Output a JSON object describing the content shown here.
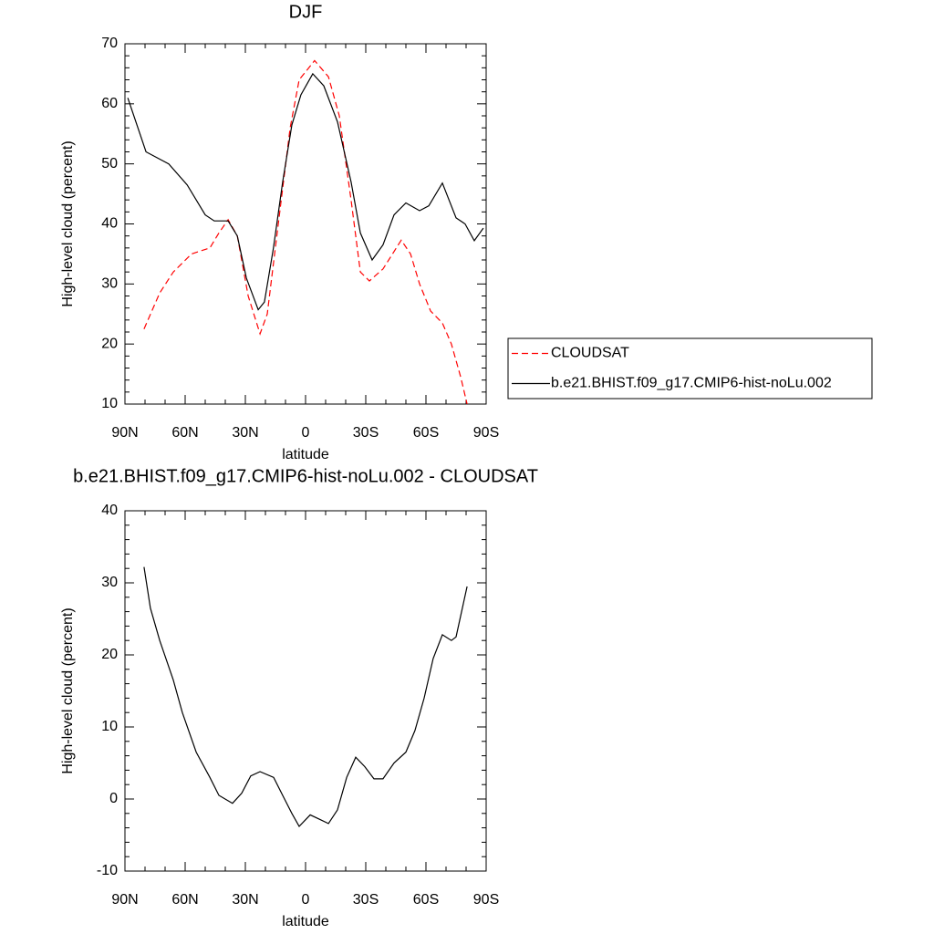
{
  "chart_data": [
    {
      "type": "line",
      "title": "DJF",
      "xlabel": "latitude",
      "ylabel": "High-level cloud (percent)",
      "xlim": [
        90,
        -90
      ],
      "xticks": [
        {
          "value": 90,
          "label": "90N"
        },
        {
          "value": 60,
          "label": "60N"
        },
        {
          "value": 30,
          "label": "30N"
        },
        0,
        {
          "value": -30,
          "label": "30S"
        },
        {
          "value": -60,
          "label": "60S"
        },
        {
          "value": -90,
          "label": "90S"
        }
      ],
      "ylim": [
        10,
        70
      ],
      "yticks": [
        10,
        20,
        30,
        40,
        50,
        60,
        70
      ],
      "legend": "right",
      "series": [
        {
          "name": "CLOUDSAT",
          "color": "#ff0000",
          "style": "dashed",
          "x": [
            80.5,
            72.7,
            65.9,
            56.8,
            47.7,
            43.2,
            38.6,
            34,
            28.6,
            22.7,
            19.1,
            13.6,
            7.7,
            3.2,
            -4.5,
            -11.4,
            -16.8,
            -22.7,
            -27.3,
            -31.8,
            -38.6,
            -47.7,
            -52.3,
            -56.8,
            -62.3,
            -68.2,
            -72.7,
            -77.3,
            -80.5
          ],
          "values": [
            22.5,
            28.5,
            32,
            35,
            36,
            38.5,
            40.7,
            38,
            28,
            21.7,
            25,
            40,
            56,
            64,
            67.2,
            64.5,
            58,
            44,
            32,
            30.5,
            32.5,
            37.3,
            35,
            30,
            25.5,
            23.5,
            20,
            14.5,
            10
          ]
        },
        {
          "name": "b.e21.BHIST.f09_g17.CMIP6-hist-noLu.002",
          "color": "#000000",
          "style": "solid",
          "x": [
            88.6,
            79.5,
            68.2,
            59,
            50,
            45.5,
            38.6,
            34,
            29.5,
            23.6,
            20.5,
            16,
            11.4,
            6.8,
            2.3,
            -3.6,
            -9.1,
            -15.9,
            -22.7,
            -27.3,
            -33.2,
            -38.6,
            -44.1,
            -50,
            -56.8,
            -61.4,
            -68.2,
            -75,
            -79.5,
            -84.1,
            -88.6
          ],
          "values": [
            61,
            52,
            50,
            46.5,
            41.5,
            40.5,
            40.5,
            38,
            31,
            25.7,
            27,
            36,
            47,
            56.5,
            61.5,
            65,
            63,
            57,
            47,
            38.5,
            34,
            36.5,
            41.5,
            43.5,
            42.2,
            43,
            46.8,
            41,
            40,
            37.2,
            39.3
          ]
        }
      ]
    },
    {
      "type": "line",
      "title": "b.e21.BHIST.f09_g17.CMIP6-hist-noLu.002 - CLOUDSAT",
      "xlabel": "latitude",
      "ylabel": "High-level cloud (percent)",
      "xlim": [
        90,
        -90
      ],
      "xticks": [
        {
          "value": 90,
          "label": "90N"
        },
        {
          "value": 60,
          "label": "60N"
        },
        {
          "value": 30,
          "label": "30N"
        },
        0,
        {
          "value": -30,
          "label": "30S"
        },
        {
          "value": -60,
          "label": "60S"
        },
        {
          "value": -90,
          "label": "90S"
        }
      ],
      "ylim": [
        -10,
        40
      ],
      "yticks": [
        -10,
        0,
        10,
        20,
        30,
        40
      ],
      "color": "#000000",
      "x": [
        80.5,
        77.3,
        72.7,
        65.9,
        61.4,
        54.5,
        47.7,
        43.2,
        36.4,
        31.8,
        27.3,
        22.7,
        15.9,
        11.4,
        6.8,
        3.2,
        -2.3,
        -6.8,
        -11.4,
        -15.9,
        -20.5,
        -25,
        -29.5,
        -34.1,
        -38.6,
        -44.1,
        -50,
        -54.5,
        -59.1,
        -63.6,
        -68.2,
        -72.7,
        -75,
        -80.5
      ],
      "values": [
        32.2,
        26.5,
        22,
        16.5,
        12,
        6.5,
        3,
        0.5,
        -0.6,
        0.8,
        3.2,
        3.8,
        3,
        0.5,
        -2,
        -3.8,
        -2.2,
        -2.8,
        -3.4,
        -1.5,
        3,
        5.8,
        4.5,
        2.8,
        2.8,
        5,
        6.5,
        9.5,
        14,
        19.5,
        22.8,
        22,
        22.5,
        29.5
      ]
    }
  ]
}
